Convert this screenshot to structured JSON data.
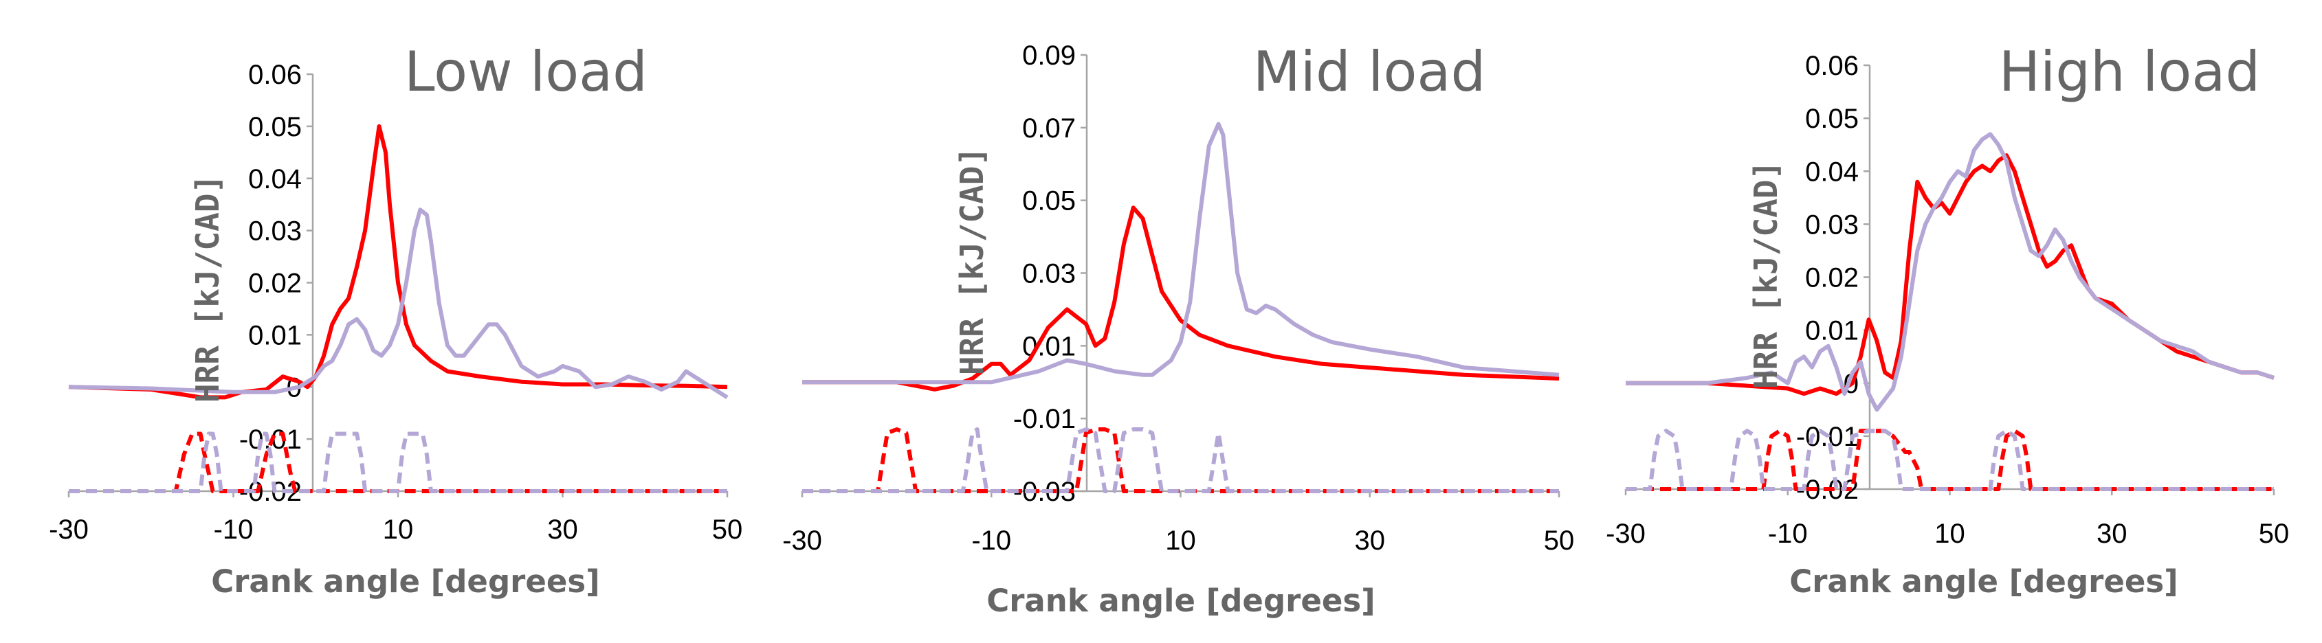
{
  "chart_data": [
    {
      "type": "line",
      "title": "Low load",
      "xlabel": "Crank angle [degrees]",
      "ylabel": "HRR [kJ/CAD]",
      "xlim": [
        -30,
        50
      ],
      "ylim": [
        -0.02,
        0.06
      ],
      "xticks": [
        -30,
        -10,
        10,
        30,
        50
      ],
      "yticks": [
        -0.02,
        -0.01,
        0,
        0.01,
        0.02,
        0.03,
        0.04,
        0.05,
        0.06
      ],
      "tick_labels_x": [
        "-30",
        "-10",
        "10",
        "30",
        "50"
      ],
      "tick_labels_y": [
        "-0.02",
        "-0.01",
        "0",
        "0.01",
        "0.02",
        "0.03",
        "0.04",
        "0.05",
        "0.06"
      ],
      "grid": false,
      "series": [
        {
          "style": "solid",
          "color": "#ff0000",
          "x": [
            -30,
            -20,
            -14,
            -11,
            -9,
            -6,
            -4,
            -2,
            -1,
            0,
            1,
            2,
            3,
            4,
            5,
            6,
            7,
            7.7,
            8.5,
            9,
            10,
            11,
            12,
            14,
            16,
            20,
            25,
            30,
            35,
            40,
            45,
            50
          ],
          "y": [
            0,
            -0.0005,
            -0.002,
            -0.002,
            -0.001,
            -0.0005,
            0.002,
            0.001,
            0,
            0.002,
            0.006,
            0.012,
            0.015,
            0.017,
            0.023,
            0.03,
            0.042,
            0.05,
            0.045,
            0.035,
            0.02,
            0.012,
            0.008,
            0.005,
            0.003,
            0.002,
            0.001,
            0.0005,
            0.0005,
            0.0003,
            0.0002,
            0
          ]
        },
        {
          "style": "solid",
          "color": "#b4a7d6",
          "x": [
            -30,
            -20,
            -10,
            -5,
            -2,
            0,
            1,
            2,
            3,
            4,
            5,
            6,
            7,
            8,
            9,
            10,
            11,
            12,
            12.7,
            13.5,
            14,
            15,
            16,
            17,
            18,
            19,
            20,
            21,
            22,
            23,
            24,
            25,
            27,
            29,
            30,
            32,
            34,
            36,
            38,
            40,
            42,
            44,
            45,
            46,
            48,
            50
          ],
          "y": [
            0,
            -0.0003,
            -0.001,
            -0.001,
            0,
            0.002,
            0.004,
            0.005,
            0.008,
            0.012,
            0.013,
            0.011,
            0.007,
            0.006,
            0.008,
            0.012,
            0.02,
            0.03,
            0.034,
            0.033,
            0.028,
            0.016,
            0.008,
            0.006,
            0.006,
            0.008,
            0.01,
            0.012,
            0.012,
            0.01,
            0.007,
            0.004,
            0.002,
            0.003,
            0.004,
            0.003,
            0,
            0.0005,
            0.002,
            0.001,
            -0.0005,
            0.001,
            0.003,
            0.002,
            0,
            -0.002
          ]
        },
        {
          "style": "dashed",
          "color": "#ff0000",
          "x": [
            -30,
            -17,
            -16,
            -15,
            -14,
            -13.5,
            -12.5,
            -12,
            -7,
            -6,
            -5,
            -4,
            -3.5,
            -3,
            -2.5,
            50
          ],
          "y": [
            -0.02,
            -0.02,
            -0.013,
            -0.009,
            -0.009,
            -0.013,
            -0.02,
            -0.02,
            -0.02,
            -0.013,
            -0.009,
            -0.009,
            -0.013,
            -0.017,
            -0.02,
            -0.02
          ]
        },
        {
          "style": "dashed",
          "color": "#b4a7d6",
          "x": [
            -30,
            -14,
            -13.5,
            -13,
            -12.5,
            -12,
            -11.5,
            -7.5,
            -7,
            -6.5,
            -6,
            -5.5,
            -5,
            1,
            1.5,
            2,
            3,
            4,
            5,
            5.5,
            6,
            10,
            10.5,
            11,
            12,
            13,
            13.5,
            14,
            50
          ],
          "y": [
            -0.02,
            -0.02,
            -0.013,
            -0.009,
            -0.009,
            -0.013,
            -0.02,
            -0.02,
            -0.013,
            -0.009,
            -0.009,
            -0.013,
            -0.02,
            -0.02,
            -0.013,
            -0.009,
            -0.009,
            -0.009,
            -0.009,
            -0.013,
            -0.02,
            -0.02,
            -0.013,
            -0.009,
            -0.009,
            -0.009,
            -0.013,
            -0.02,
            -0.02
          ]
        }
      ]
    },
    {
      "type": "line",
      "title": "Mid load",
      "xlabel": "Crank angle [degrees]",
      "ylabel": "HRR [kJ/CAD]",
      "xlim": [
        -30,
        50
      ],
      "ylim": [
        -0.03,
        0.09
      ],
      "xticks": [
        -30,
        -10,
        10,
        30,
        50
      ],
      "yticks": [
        -0.03,
        -0.01,
        0.01,
        0.03,
        0.05,
        0.07,
        0.09
      ],
      "tick_labels_x": [
        "-30",
        "-10",
        "10",
        "30",
        "50"
      ],
      "tick_labels_y": [
        "-0.03",
        "-0.01",
        "0.01",
        "0.03",
        "0.05",
        "0.07",
        "0.09"
      ],
      "grid": false,
      "series": [
        {
          "style": "solid",
          "color": "#ff0000",
          "x": [
            -30,
            -20,
            -16,
            -14,
            -12,
            -10,
            -9,
            -8,
            -6,
            -4,
            -2,
            0,
            1,
            2,
            3,
            4,
            5,
            6,
            7,
            8,
            10,
            12,
            15,
            20,
            25,
            30,
            40,
            50
          ],
          "y": [
            0,
            0,
            -0.002,
            -0.001,
            0.001,
            0.005,
            0.005,
            0.002,
            0.006,
            0.015,
            0.02,
            0.016,
            0.01,
            0.012,
            0.022,
            0.038,
            0.048,
            0.045,
            0.035,
            0.025,
            0.017,
            0.013,
            0.01,
            0.007,
            0.005,
            0.004,
            0.002,
            0.001
          ]
        },
        {
          "style": "solid",
          "color": "#b4a7d6",
          "x": [
            -30,
            -15,
            -10,
            -5,
            -2,
            0,
            3,
            6,
            7,
            9,
            10,
            11,
            12,
            13,
            14,
            14.5,
            15,
            16,
            17,
            18,
            19,
            20,
            22,
            24,
            26,
            28,
            30,
            35,
            40,
            45,
            50
          ],
          "y": [
            0,
            0,
            0,
            0.003,
            0.006,
            0.005,
            0.003,
            0.002,
            0.002,
            0.006,
            0.011,
            0.022,
            0.045,
            0.065,
            0.071,
            0.068,
            0.055,
            0.03,
            0.02,
            0.019,
            0.021,
            0.02,
            0.016,
            0.013,
            0.011,
            0.01,
            0.009,
            0.007,
            0.004,
            0.003,
            0.002
          ]
        },
        {
          "style": "dashed",
          "color": "#ff0000",
          "x": [
            -30,
            -22,
            -21.5,
            -21,
            -20,
            -19,
            -18.5,
            -18,
            -1,
            -0.5,
            0,
            1,
            2,
            3,
            3.5,
            4,
            50
          ],
          "y": [
            -0.03,
            -0.03,
            -0.022,
            -0.014,
            -0.013,
            -0.014,
            -0.022,
            -0.03,
            -0.03,
            -0.022,
            -0.014,
            -0.013,
            -0.013,
            -0.014,
            -0.022,
            -0.03,
            -0.03
          ]
        },
        {
          "style": "dashed",
          "color": "#b4a7d6",
          "x": [
            -30,
            -13,
            -12.5,
            -12,
            -11.5,
            -11,
            -10.5,
            -2,
            -1.5,
            -1,
            0,
            1,
            1.5,
            2,
            3,
            3.5,
            4,
            5,
            6,
            7,
            7.5,
            8,
            13,
            13.5,
            14,
            14.5,
            15,
            15.5,
            50
          ],
          "y": [
            -0.03,
            -0.03,
            -0.022,
            -0.014,
            -0.013,
            -0.022,
            -0.03,
            -0.03,
            -0.022,
            -0.014,
            -0.013,
            -0.014,
            -0.022,
            -0.03,
            -0.03,
            -0.022,
            -0.014,
            -0.013,
            -0.013,
            -0.014,
            -0.022,
            -0.03,
            -0.03,
            -0.022,
            -0.014,
            -0.022,
            -0.03,
            -0.03,
            -0.03
          ]
        }
      ]
    },
    {
      "type": "line",
      "title": "High load",
      "xlabel": "Crank angle [degrees]",
      "ylabel": "HRR [kJ/CAD]",
      "xlim": [
        -30,
        50
      ],
      "ylim": [
        -0.02,
        0.06
      ],
      "xticks": [
        -30,
        -10,
        10,
        30,
        50
      ],
      "yticks": [
        -0.02,
        -0.01,
        0,
        0.01,
        0.02,
        0.03,
        0.04,
        0.05,
        0.06
      ],
      "tick_labels_x": [
        "-30",
        "-10",
        "10",
        "30",
        "50"
      ],
      "tick_labels_y": [
        "-0.02",
        "-0.01",
        "0",
        "0.01",
        "0.02",
        "0.03",
        "0.04",
        "0.05",
        "0.06"
      ],
      "grid": false,
      "series": [
        {
          "style": "solid",
          "color": "#ff0000",
          "x": [
            -30,
            -20,
            -15,
            -10,
            -8,
            -6,
            -4,
            -3,
            -2,
            -1,
            0,
            1,
            2,
            3,
            4,
            5,
            6,
            7,
            8,
            9,
            10,
            11,
            12,
            13,
            14,
            15,
            16,
            17,
            18,
            19,
            20,
            21,
            22,
            23,
            24,
            25,
            26,
            27,
            28,
            30,
            32,
            34,
            36,
            38,
            40,
            42,
            44,
            46,
            48,
            50
          ],
          "y": [
            0,
            0,
            -0.0005,
            -0.001,
            -0.002,
            -0.001,
            -0.002,
            -0.001,
            0,
            0.005,
            0.012,
            0.008,
            0.002,
            0.001,
            0.008,
            0.025,
            0.038,
            0.035,
            0.033,
            0.034,
            0.032,
            0.035,
            0.038,
            0.04,
            0.041,
            0.04,
            0.042,
            0.043,
            0.04,
            0.035,
            0.03,
            0.025,
            0.022,
            0.023,
            0.025,
            0.026,
            0.022,
            0.018,
            0.016,
            0.015,
            0.012,
            0.01,
            0.008,
            0.006,
            0.005,
            0.004,
            0.003,
            0.002,
            0.002,
            0.001
          ]
        },
        {
          "style": "solid",
          "color": "#b4a7d6",
          "x": [
            -30,
            -20,
            -15,
            -12,
            -10,
            -9,
            -8,
            -7,
            -6,
            -5,
            -4,
            -3,
            -2,
            -1,
            0,
            1,
            2,
            3,
            4,
            5,
            6,
            7,
            8,
            9,
            10,
            11,
            12,
            13,
            14,
            15,
            16,
            17,
            18,
            19,
            20,
            21,
            22,
            23,
            24,
            25,
            26,
            27,
            28,
            30,
            32,
            34,
            36,
            38,
            40,
            42,
            44,
            46,
            48,
            50
          ],
          "y": [
            0,
            0,
            0.001,
            0.002,
            0,
            0.004,
            0.005,
            0.003,
            0.006,
            0.007,
            0.003,
            -0.002,
            0.002,
            0.004,
            -0.002,
            -0.005,
            -0.003,
            -0.001,
            0.005,
            0.015,
            0.025,
            0.03,
            0.033,
            0.035,
            0.038,
            0.04,
            0.039,
            0.044,
            0.046,
            0.047,
            0.045,
            0.042,
            0.035,
            0.03,
            0.025,
            0.024,
            0.026,
            0.029,
            0.027,
            0.023,
            0.02,
            0.018,
            0.016,
            0.014,
            0.012,
            0.01,
            0.008,
            0.007,
            0.006,
            0.004,
            0.003,
            0.002,
            0.002,
            0.001
          ]
        },
        {
          "style": "dashed",
          "color": "#ff0000",
          "x": [
            -30,
            -13,
            -12.5,
            -12,
            -11,
            -10,
            -9.5,
            -9,
            -2,
            -1,
            0,
            1,
            2,
            3,
            4,
            4.5,
            5,
            6,
            6.5,
            7,
            16,
            16.5,
            17,
            18,
            19,
            19.5,
            20,
            50
          ],
          "y": [
            -0.02,
            -0.02,
            -0.014,
            -0.01,
            -0.009,
            -0.01,
            -0.014,
            -0.02,
            -0.02,
            -0.009,
            -0.009,
            -0.009,
            -0.009,
            -0.01,
            -0.012,
            -0.013,
            -0.013,
            -0.016,
            -0.02,
            -0.02,
            -0.02,
            -0.014,
            -0.01,
            -0.009,
            -0.01,
            -0.014,
            -0.02,
            -0.02
          ]
        },
        {
          "style": "dashed",
          "color": "#b4a7d6",
          "x": [
            -30,
            -27,
            -26.5,
            -26,
            -25,
            -24,
            -23.5,
            -23,
            -17,
            -16.5,
            -16,
            -15,
            -14,
            -13.5,
            -13,
            -8,
            -7.5,
            -7,
            -6,
            -5,
            -4.5,
            -4,
            -3,
            -2,
            0,
            2,
            3,
            3.5,
            4,
            15,
            15.5,
            16,
            17,
            18,
            18.5,
            19,
            50
          ],
          "y": [
            -0.02,
            -0.02,
            -0.014,
            -0.01,
            -0.009,
            -0.01,
            -0.014,
            -0.02,
            -0.02,
            -0.014,
            -0.01,
            -0.009,
            -0.01,
            -0.014,
            -0.02,
            -0.02,
            -0.014,
            -0.01,
            -0.009,
            -0.01,
            -0.014,
            -0.02,
            -0.02,
            -0.01,
            -0.009,
            -0.009,
            -0.01,
            -0.014,
            -0.02,
            -0.02,
            -0.014,
            -0.01,
            -0.009,
            -0.01,
            -0.014,
            -0.02,
            -0.02
          ]
        }
      ]
    }
  ]
}
